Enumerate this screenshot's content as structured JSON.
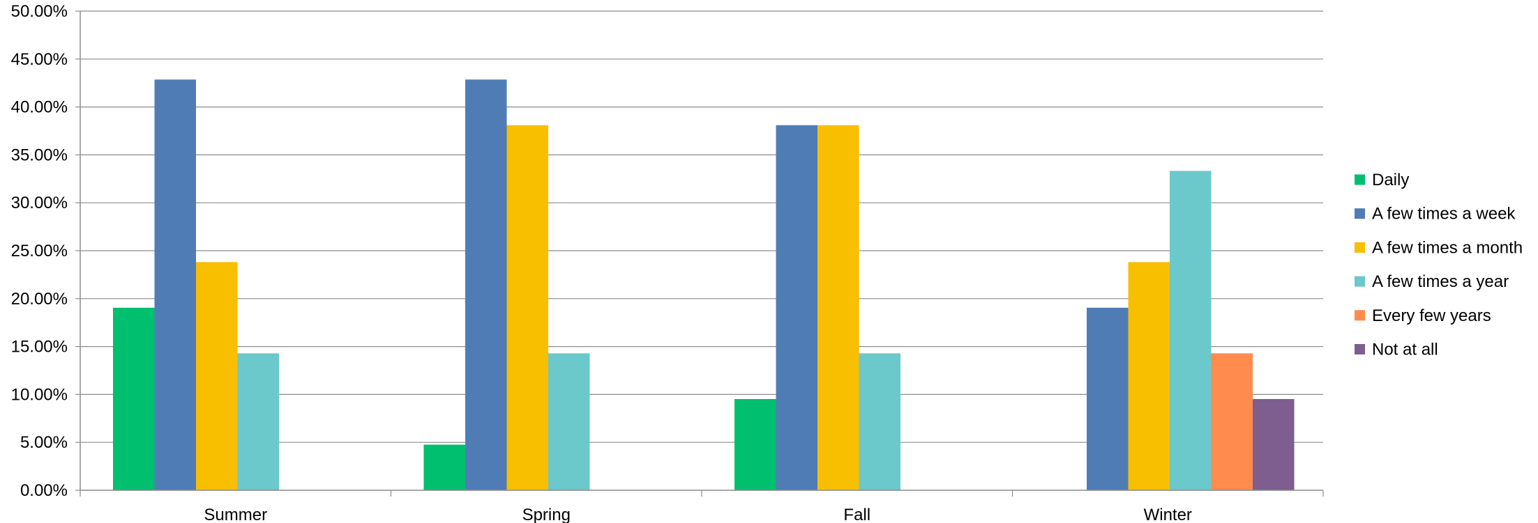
{
  "chart_data": {
    "type": "bar",
    "categories": [
      "Summer",
      "Spring",
      "Fall",
      "Winter"
    ],
    "series": [
      {
        "name": "Daily",
        "color": "#00BF6F",
        "values": [
          19.05,
          4.76,
          9.52,
          0
        ]
      },
      {
        "name": "A few times a week",
        "color": "#507CB6",
        "values": [
          42.86,
          42.86,
          38.1,
          19.05
        ]
      },
      {
        "name": "A few times a month",
        "color": "#F8BE00",
        "values": [
          23.81,
          38.1,
          38.1,
          23.81
        ]
      },
      {
        "name": "A few times a year",
        "color": "#6BC8CB",
        "values": [
          14.29,
          14.29,
          14.29,
          33.33
        ]
      },
      {
        "name": "Every few years",
        "color": "#FF8B4F",
        "values": [
          0,
          0,
          0,
          14.29
        ]
      },
      {
        "name": "Not at all",
        "color": "#7D5E8F",
        "values": [
          0,
          0,
          0,
          9.52
        ]
      }
    ],
    "yticks": [
      "0.00%",
      "5.00%",
      "10.00%",
      "15.00%",
      "20.00%",
      "25.00%",
      "30.00%",
      "35.00%",
      "40.00%",
      "45.00%",
      "50.00%"
    ],
    "ylim": [
      0,
      50
    ],
    "ytick_step": 5,
    "grid": true,
    "legend_position": "right",
    "title": "",
    "xlabel": "",
    "ylabel": ""
  }
}
